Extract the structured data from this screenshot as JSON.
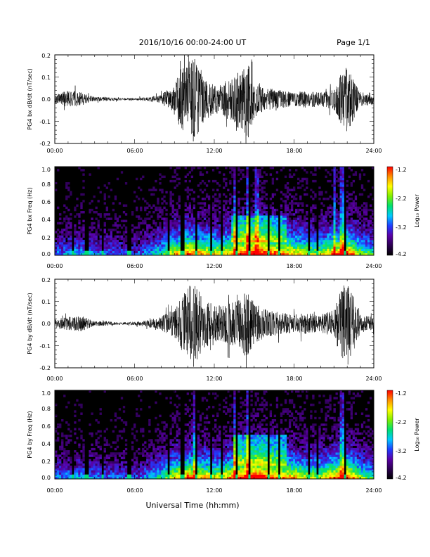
{
  "header": {
    "title": "2016/10/16  00:00-24:00 UT",
    "page": "Page 1/1"
  },
  "footer": {
    "xlabel": "Universal Time (hh:mm)"
  },
  "colorbar": {
    "label": "Log₁₀ Power",
    "ticks": [
      "-1.2",
      "-2.2",
      "-3.2",
      "-4.2"
    ],
    "range": [
      -4.2,
      -1.2
    ],
    "colormap": [
      "#000000",
      "#2b0050",
      "#5a00a6",
      "#1f3cff",
      "#00c8ff",
      "#00e070",
      "#7fef00",
      "#ffff00",
      "#ff9000",
      "#ff0000"
    ]
  },
  "chart_data": [
    {
      "type": "line",
      "ylabel": "PG4 bx dB/dt (nT/sec)",
      "xlim": [
        "00:00",
        "24:00"
      ],
      "ylim": [
        -0.2,
        0.2
      ],
      "xticks": [
        "00:00",
        "06:00",
        "12:00",
        "18:00",
        "24:00"
      ],
      "yticks": [
        "0.2",
        "0.1",
        "0.0",
        "-0.1",
        "-0.2"
      ],
      "series": [
        {
          "x_hours": [
            0,
            1,
            2,
            3,
            4,
            5,
            6,
            7,
            8,
            9,
            9.5,
            10,
            10.5,
            11,
            11.5,
            12,
            13,
            14,
            14.5,
            15,
            16,
            17,
            18,
            19,
            20,
            21,
            21.5,
            22,
            23,
            24
          ],
          "amplitude": [
            0.02,
            0.04,
            0.03,
            0.01,
            0.01,
            0.005,
            0.005,
            0.01,
            0.02,
            0.07,
            0.14,
            0.16,
            0.2,
            0.12,
            0.09,
            0.06,
            0.09,
            0.14,
            0.17,
            0.09,
            0.05,
            0.04,
            0.03,
            0.04,
            0.03,
            0.05,
            0.12,
            0.15,
            0.03,
            0.03
          ]
        }
      ]
    },
    {
      "type": "heatmap",
      "ylabel": "PG4 bx Freq (Hz)",
      "xlim": [
        "00:00",
        "24:00"
      ],
      "ylim": [
        0.0,
        1.0
      ],
      "xticks": [
        "00:00",
        "06:00",
        "12:00",
        "18:00",
        "24:00"
      ],
      "yticks": [
        "1.0",
        "0.8",
        "0.6",
        "0.4",
        "0.2",
        "0.0"
      ],
      "zlim": [
        -4.2,
        -1.2
      ],
      "seed": 11,
      "activity_hours": [
        0,
        2,
        4,
        6,
        8,
        9,
        10,
        11,
        12,
        13,
        14,
        15,
        16,
        17,
        18,
        19,
        20,
        21,
        22,
        23,
        24
      ],
      "activity": [
        0.3,
        0.35,
        0.3,
        0.25,
        0.45,
        0.65,
        0.8,
        0.7,
        0.65,
        0.7,
        0.85,
        0.9,
        0.85,
        0.75,
        0.7,
        0.6,
        0.6,
        0.75,
        0.85,
        0.55,
        0.45
      ],
      "dark_columns": [
        1.3,
        2.4,
        3.6,
        5.6,
        8.6,
        9.6,
        10.6,
        11.7,
        12.6,
        13.7,
        14.7,
        16.1,
        16.9,
        19.1,
        19.8,
        21.8
      ],
      "hot_columns": [
        13.6,
        14.5,
        15.2,
        21.0,
        21.6
      ],
      "blob": {
        "t": [
          13.2,
          17.5
        ],
        "f": [
          0.15,
          0.45
        ]
      }
    },
    {
      "type": "line",
      "ylabel": "PG4 by dB/dt (nT/sec)",
      "xlim": [
        "00:00",
        "24:00"
      ],
      "ylim": [
        -0.2,
        0.2
      ],
      "xticks": [
        "00:00",
        "06:00",
        "12:00",
        "18:00",
        "24:00"
      ],
      "yticks": [
        "0.2",
        "0.1",
        "0.0",
        "-0.1",
        "-0.2"
      ],
      "series": [
        {
          "x_hours": [
            0,
            1,
            2,
            3,
            4,
            5,
            6,
            7,
            8,
            8.5,
            9,
            9.5,
            10,
            10.5,
            11,
            12,
            13,
            14,
            14.5,
            15,
            16,
            17,
            18,
            19,
            20,
            21,
            21.5,
            22,
            23,
            24
          ],
          "amplitude": [
            0.02,
            0.03,
            0.035,
            0.01,
            0.01,
            0.005,
            0.008,
            0.015,
            0.03,
            0.05,
            0.06,
            0.12,
            0.16,
            0.2,
            0.13,
            0.08,
            0.09,
            0.12,
            0.16,
            0.09,
            0.06,
            0.05,
            0.04,
            0.05,
            0.04,
            0.06,
            0.15,
            0.2,
            0.04,
            0.03
          ]
        }
      ]
    },
    {
      "type": "heatmap",
      "ylabel": "PG4 by Freq (Hz)",
      "xlim": [
        "00:00",
        "24:00"
      ],
      "ylim": [
        0.0,
        1.0
      ],
      "xticks": [
        "00:00",
        "06:00",
        "12:00",
        "18:00",
        "24:00"
      ],
      "yticks": [
        "1.0",
        "0.8",
        "0.6",
        "0.4",
        "0.2",
        "0.0"
      ],
      "zlim": [
        -4.2,
        -1.2
      ],
      "seed": 29,
      "activity_hours": [
        0,
        2,
        4,
        6,
        8,
        9,
        10,
        11,
        12,
        13,
        14,
        15,
        16,
        17,
        18,
        19,
        20,
        21,
        22,
        23,
        24
      ],
      "activity": [
        0.3,
        0.35,
        0.3,
        0.25,
        0.45,
        0.65,
        0.8,
        0.7,
        0.65,
        0.7,
        0.85,
        0.9,
        0.85,
        0.75,
        0.7,
        0.6,
        0.6,
        0.75,
        0.85,
        0.55,
        0.45
      ],
      "dark_columns": [
        1.3,
        2.4,
        3.6,
        5.6,
        8.6,
        9.6,
        10.6,
        11.7,
        12.6,
        13.7,
        14.7,
        16.1,
        16.9,
        19.1,
        19.8,
        21.8
      ],
      "hot_columns": [
        10.5,
        13.6,
        14.5,
        21.6
      ],
      "blob": {
        "t": [
          13.5,
          17.5
        ],
        "f": [
          0.15,
          0.5
        ]
      }
    }
  ]
}
